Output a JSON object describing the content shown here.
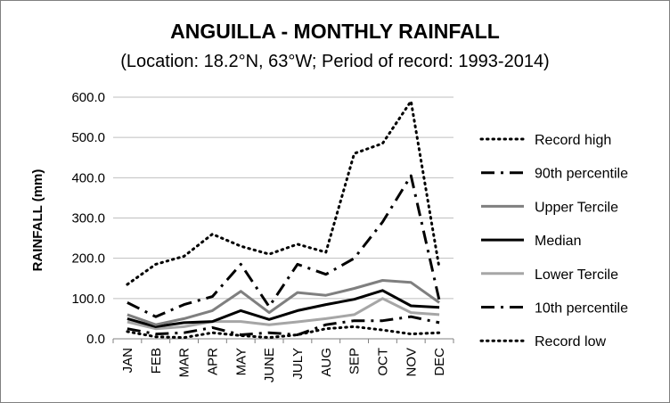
{
  "chart_data": {
    "type": "line",
    "title": "ANGUILLA - MONTHLY RAINFALL",
    "subtitle": "(Location: 18.2°N, 63°W; Period of record: 1993-2014)",
    "ylabel": "RAINFALL (mm)",
    "xlabel": "",
    "ylim": [
      0,
      600
    ],
    "yticks": [
      "0.0",
      "100.0",
      "200.0",
      "300.0",
      "400.0",
      "500.0",
      "600.0"
    ],
    "grid": true,
    "legend": "right",
    "categories": [
      "JAN",
      "FEB",
      "MAR",
      "APR",
      "MAY",
      "JUNE",
      "JULY",
      "AUG",
      "SEP",
      "OCT",
      "NOV",
      "DEC"
    ],
    "series": [
      {
        "name": "Record high",
        "color": "#000000",
        "style": "dotted",
        "values": [
          135,
          185,
          205,
          260,
          230,
          210,
          235,
          215,
          460,
          485,
          590,
          175
        ]
      },
      {
        "name": "90th percentile",
        "color": "#000000",
        "style": "dashdot",
        "values": [
          90,
          55,
          85,
          105,
          185,
          80,
          185,
          160,
          200,
          290,
          405,
          95
        ]
      },
      {
        "name": "Upper Tercile",
        "color": "#7f7f7f",
        "style": "solid",
        "values": [
          60,
          35,
          50,
          70,
          118,
          65,
          115,
          108,
          125,
          145,
          140,
          90
        ]
      },
      {
        "name": "Median",
        "color": "#000000",
        "style": "solid",
        "values": [
          50,
          30,
          40,
          43,
          70,
          48,
          70,
          85,
          98,
          120,
          82,
          78
        ]
      },
      {
        "name": "Lower Tercile",
        "color": "#a6a6a6",
        "style": "solid",
        "values": [
          42,
          25,
          30,
          43,
          43,
          35,
          42,
          50,
          60,
          100,
          65,
          60
        ]
      },
      {
        "name": "10th percentile",
        "color": "#000000",
        "style": "dashdot",
        "values": [
          25,
          12,
          15,
          28,
          10,
          15,
          10,
          35,
          45,
          45,
          55,
          40
        ]
      },
      {
        "name": "Record low",
        "color": "#000000",
        "style": "dotted",
        "values": [
          18,
          5,
          3,
          15,
          8,
          3,
          10,
          25,
          30,
          22,
          12,
          15
        ]
      }
    ]
  }
}
